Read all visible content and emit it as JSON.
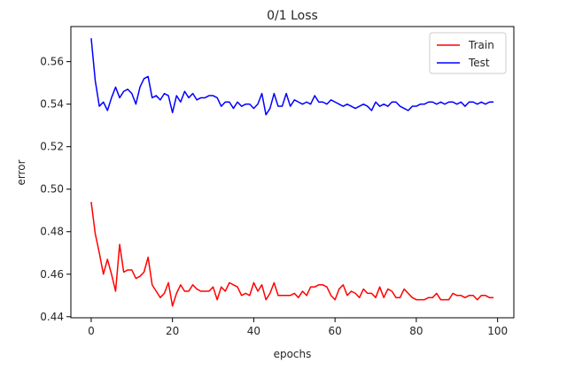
{
  "chart_data": {
    "type": "line",
    "title": "0/1 Loss",
    "xlabel": "epochs",
    "ylabel": "error",
    "xlim": [
      -5,
      104
    ],
    "ylim": [
      0.4395,
      0.5765
    ],
    "xticks": [
      0,
      20,
      40,
      60,
      80,
      100
    ],
    "yticks": [
      0.44,
      0.46,
      0.48,
      0.5,
      0.52,
      0.54,
      0.56
    ],
    "xtick_labels": [
      "0",
      "20",
      "40",
      "60",
      "80",
      "100"
    ],
    "ytick_labels": [
      "0.44",
      "0.46",
      "0.48",
      "0.50",
      "0.52",
      "0.54",
      "0.56"
    ],
    "grid": false,
    "legend_position": "top-right",
    "series": [
      {
        "name": "Train",
        "color": "#ff0000",
        "x": [
          0,
          1,
          2,
          3,
          4,
          5,
          6,
          7,
          8,
          9,
          10,
          11,
          12,
          13,
          14,
          15,
          16,
          17,
          18,
          19,
          20,
          21,
          22,
          23,
          24,
          25,
          26,
          27,
          28,
          29,
          30,
          31,
          32,
          33,
          34,
          35,
          36,
          37,
          38,
          39,
          40,
          41,
          42,
          43,
          44,
          45,
          46,
          47,
          48,
          49,
          50,
          51,
          52,
          53,
          54,
          55,
          56,
          57,
          58,
          59,
          60,
          61,
          62,
          63,
          64,
          65,
          66,
          67,
          68,
          69,
          70,
          71,
          72,
          73,
          74,
          75,
          76,
          77,
          78,
          79,
          80,
          81,
          82,
          83,
          84,
          85,
          86,
          87,
          88,
          89,
          90,
          91,
          92,
          93,
          94,
          95,
          96,
          97,
          98,
          99
        ],
        "values": [
          0.494,
          0.479,
          0.47,
          0.46,
          0.467,
          0.46,
          0.452,
          0.474,
          0.461,
          0.462,
          0.462,
          0.458,
          0.459,
          0.461,
          0.468,
          0.455,
          0.452,
          0.449,
          0.451,
          0.456,
          0.445,
          0.451,
          0.455,
          0.452,
          0.452,
          0.455,
          0.453,
          0.452,
          0.452,
          0.452,
          0.454,
          0.448,
          0.454,
          0.452,
          0.456,
          0.455,
          0.454,
          0.45,
          0.451,
          0.45,
          0.456,
          0.452,
          0.455,
          0.448,
          0.451,
          0.456,
          0.45,
          0.45,
          0.45,
          0.45,
          0.451,
          0.449,
          0.452,
          0.45,
          0.454,
          0.454,
          0.455,
          0.455,
          0.454,
          0.45,
          0.448,
          0.453,
          0.455,
          0.45,
          0.452,
          0.451,
          0.449,
          0.453,
          0.451,
          0.451,
          0.449,
          0.454,
          0.449,
          0.453,
          0.452,
          0.449,
          0.449,
          0.453,
          0.451,
          0.449,
          0.448,
          0.448,
          0.448,
          0.449,
          0.449,
          0.451,
          0.448,
          0.448,
          0.448,
          0.451,
          0.45,
          0.45,
          0.449,
          0.45,
          0.45,
          0.448,
          0.45,
          0.45,
          0.449,
          0.449
        ]
      },
      {
        "name": "Test",
        "color": "#0000ff",
        "x": [
          0,
          1,
          2,
          3,
          4,
          5,
          6,
          7,
          8,
          9,
          10,
          11,
          12,
          13,
          14,
          15,
          16,
          17,
          18,
          19,
          20,
          21,
          22,
          23,
          24,
          25,
          26,
          27,
          28,
          29,
          30,
          31,
          32,
          33,
          34,
          35,
          36,
          37,
          38,
          39,
          40,
          41,
          42,
          43,
          44,
          45,
          46,
          47,
          48,
          49,
          50,
          51,
          52,
          53,
          54,
          55,
          56,
          57,
          58,
          59,
          60,
          61,
          62,
          63,
          64,
          65,
          66,
          67,
          68,
          69,
          70,
          71,
          72,
          73,
          74,
          75,
          76,
          77,
          78,
          79,
          80,
          81,
          82,
          83,
          84,
          85,
          86,
          87,
          88,
          89,
          90,
          91,
          92,
          93,
          94,
          95,
          96,
          97,
          98,
          99
        ],
        "values": [
          0.571,
          0.551,
          0.539,
          0.541,
          0.537,
          0.543,
          0.548,
          0.543,
          0.546,
          0.547,
          0.545,
          0.54,
          0.548,
          0.552,
          0.553,
          0.543,
          0.544,
          0.542,
          0.545,
          0.544,
          0.536,
          0.544,
          0.541,
          0.546,
          0.543,
          0.545,
          0.542,
          0.543,
          0.543,
          0.544,
          0.544,
          0.543,
          0.539,
          0.541,
          0.541,
          0.538,
          0.541,
          0.539,
          0.54,
          0.54,
          0.538,
          0.54,
          0.545,
          0.535,
          0.538,
          0.545,
          0.539,
          0.539,
          0.545,
          0.539,
          0.542,
          0.541,
          0.54,
          0.541,
          0.54,
          0.544,
          0.541,
          0.541,
          0.54,
          0.542,
          0.541,
          0.54,
          0.539,
          0.54,
          0.539,
          0.538,
          0.539,
          0.54,
          0.539,
          0.537,
          0.541,
          0.539,
          0.54,
          0.539,
          0.541,
          0.541,
          0.539,
          0.538,
          0.537,
          0.539,
          0.539,
          0.54,
          0.54,
          0.541,
          0.541,
          0.54,
          0.541,
          0.54,
          0.541,
          0.541,
          0.54,
          0.541,
          0.539,
          0.541,
          0.541,
          0.54,
          0.541,
          0.54,
          0.541,
          0.541
        ]
      }
    ]
  }
}
